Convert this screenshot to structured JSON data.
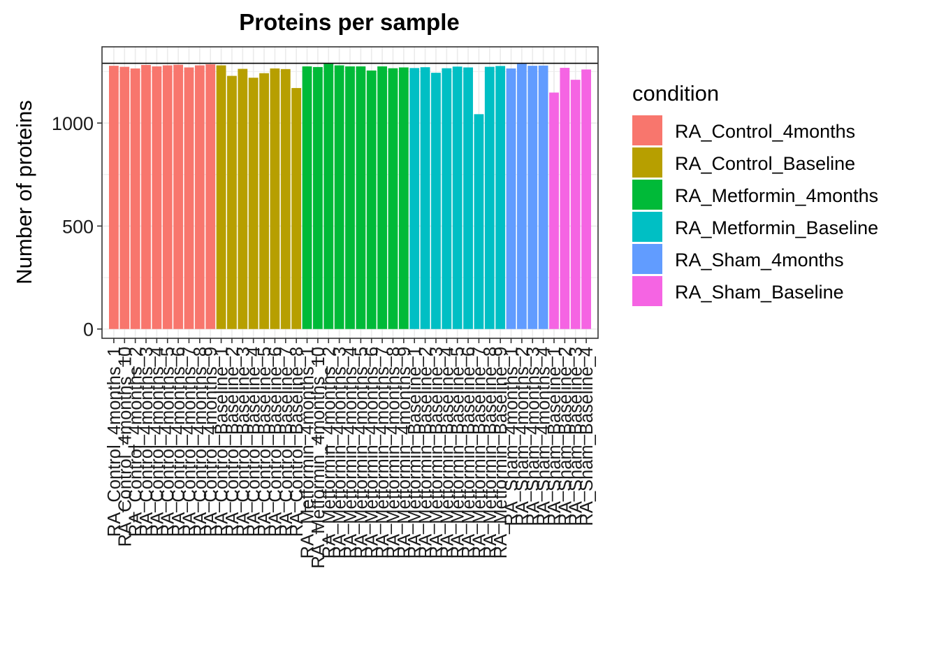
{
  "chart_data": {
    "type": "bar",
    "title": "Proteins per sample",
    "xlabel": "",
    "ylabel": "Number of proteins",
    "ylim": [
      -45,
      1370
    ],
    "yticks": [
      0,
      500,
      1000
    ],
    "grid": true,
    "legend_position": "right",
    "reference_line": 1290,
    "legend": {
      "title": "condition",
      "entries": [
        {
          "label": "RA_Control_4months",
          "color": "#F8766D"
        },
        {
          "label": "RA_Control_Baseline",
          "color": "#B79F00"
        },
        {
          "label": "RA_Metformin_4months",
          "color": "#00BA38"
        },
        {
          "label": "RA_Metformin_Baseline",
          "color": "#00BFC4"
        },
        {
          "label": "RA_Sham_4months",
          "color": "#619CFF"
        },
        {
          "label": "RA_Sham_Baseline",
          "color": "#F564E3"
        }
      ]
    },
    "categories": [
      "RA_Control_4months_1",
      "RA_Control_4months_10",
      "RA_Control_4months_2",
      "RA_Control_4months_3",
      "RA_Control_4months_4",
      "RA_Control_4months_5",
      "RA_Control_4months_6",
      "RA_Control_4months_7",
      "RA_Control_4months_8",
      "RA_Control_4months_9",
      "RA_Control_Baseline_1",
      "RA_Control_Baseline_2",
      "RA_Control_Baseline_3",
      "RA_Control_Baseline_4",
      "RA_Control_Baseline_5",
      "RA_Control_Baseline_6",
      "RA_Control_Baseline_7",
      "RA_Control_Baseline_8",
      "RA_Metformin_4months_1",
      "RA_Metformin_4months_10",
      "RA_Metformin_4months_2",
      "RA_Metformin_4months_3",
      "RA_Metformin_4months_4",
      "RA_Metformin_4months_5",
      "RA_Metformin_4months_6",
      "RA_Metformin_4months_7",
      "RA_Metformin_4months_8",
      "RA_Metformin_4months_9",
      "RA_Metformin_Baseline_1",
      "RA_Metformin_Baseline_2",
      "RA_Metformin_Baseline_3",
      "RA_Metformin_Baseline_4",
      "RA_Metformin_Baseline_5",
      "RA_Metformin_Baseline_6",
      "RA_Metformin_Baseline_7",
      "RA_Metformin_Baseline_8",
      "RA_Metformin_Baseline_9",
      "RA_Sham_4months_1",
      "RA_Sham_4months_2",
      "RA_Sham_4months_3",
      "RA_Sham_4months_4",
      "RA_Sham_Baseline_1",
      "RA_Sham_Baseline_2",
      "RA_Sham_Baseline_3",
      "RA_Sham_Baseline_4"
    ],
    "conditions": [
      "RA_Control_4months",
      "RA_Control_4months",
      "RA_Control_4months",
      "RA_Control_4months",
      "RA_Control_4months",
      "RA_Control_4months",
      "RA_Control_4months",
      "RA_Control_4months",
      "RA_Control_4months",
      "RA_Control_4months",
      "RA_Control_Baseline",
      "RA_Control_Baseline",
      "RA_Control_Baseline",
      "RA_Control_Baseline",
      "RA_Control_Baseline",
      "RA_Control_Baseline",
      "RA_Control_Baseline",
      "RA_Control_Baseline",
      "RA_Metformin_4months",
      "RA_Metformin_4months",
      "RA_Metformin_4months",
      "RA_Metformin_4months",
      "RA_Metformin_4months",
      "RA_Metformin_4months",
      "RA_Metformin_4months",
      "RA_Metformin_4months",
      "RA_Metformin_4months",
      "RA_Metformin_4months",
      "RA_Metformin_Baseline",
      "RA_Metformin_Baseline",
      "RA_Metformin_Baseline",
      "RA_Metformin_Baseline",
      "RA_Metformin_Baseline",
      "RA_Metformin_Baseline",
      "RA_Metformin_Baseline",
      "RA_Metformin_Baseline",
      "RA_Metformin_Baseline",
      "RA_Sham_4months",
      "RA_Sham_4months",
      "RA_Sham_4months",
      "RA_Sham_4months",
      "RA_Sham_Baseline",
      "RA_Sham_Baseline",
      "RA_Sham_Baseline",
      "RA_Sham_Baseline"
    ],
    "values": [
      1278,
      1273,
      1265,
      1282,
      1275,
      1280,
      1283,
      1270,
      1280,
      1285,
      1280,
      1229,
      1263,
      1220,
      1242,
      1265,
      1262,
      1170,
      1275,
      1272,
      1287,
      1280,
      1275,
      1275,
      1255,
      1275,
      1266,
      1270,
      1267,
      1271,
      1244,
      1266,
      1274,
      1270,
      1043,
      1273,
      1277,
      1265,
      1287,
      1278,
      1279,
      1148,
      1268,
      1210,
      1260
    ]
  }
}
